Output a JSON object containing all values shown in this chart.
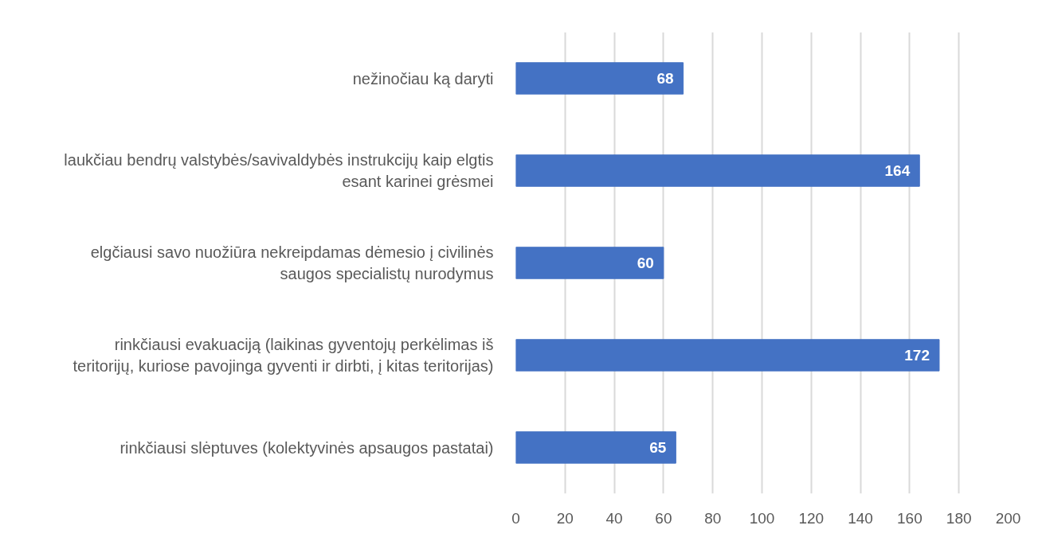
{
  "chart_data": {
    "type": "bar",
    "orientation": "horizontal",
    "categories": [
      "nežinočiau ką daryti",
      "laukčiau bendrų valstybės/savivaldybės instrukcijų kaip elgtis esant karinei grėsmei",
      "elgčiausi savo nuožiūra nekreipdamas dėmesio į civilinės saugos specialistų nurodymus",
      "rinkčiausi evakuaciją (laikinas gyventojų perkėlimas iš teritorijų, kuriose pavojinga gyventi ir dirbti, į kitas teritorijas)",
      "rinkčiausi slėptuves (kolektyvinės apsaugos pastatai)"
    ],
    "values": [
      68,
      164,
      60,
      172,
      65
    ],
    "color": "#4472c4",
    "xlim": [
      0,
      200
    ],
    "xticks": [
      0,
      20,
      40,
      60,
      80,
      100,
      120,
      140,
      160,
      180,
      200
    ],
    "grid": "x",
    "data_labels": true
  }
}
